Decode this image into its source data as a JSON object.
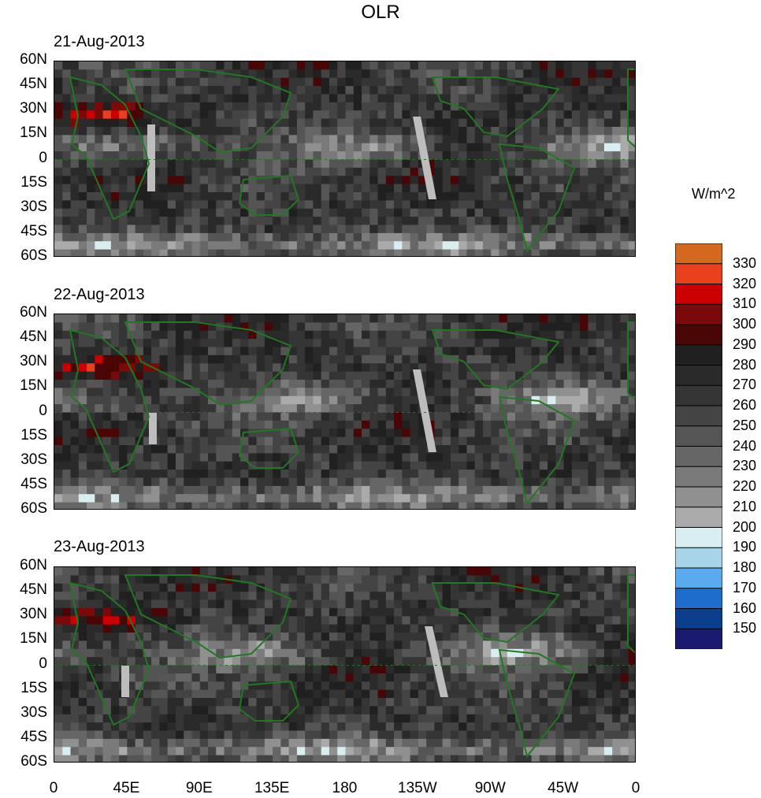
{
  "figure": {
    "title": "OLR",
    "panels": [
      {
        "date": "21-Aug-2013"
      },
      {
        "date": "22-Aug-2013"
      },
      {
        "date": "23-Aug-2013"
      }
    ],
    "lat_ticks": [
      "60N",
      "45N",
      "30N",
      "15N",
      "0",
      "15S",
      "30S",
      "45S",
      "60S"
    ],
    "lon_ticks": [
      "0",
      "45E",
      "90E",
      "135E",
      "180",
      "135W",
      "90W",
      "45W",
      "0"
    ],
    "colorbar": {
      "units": "W/m^2",
      "levels": [
        "330",
        "320",
        "310",
        "300",
        "290",
        "280",
        "270",
        "260",
        "250",
        "240",
        "230",
        "220",
        "210",
        "200",
        "190",
        "180",
        "170",
        "160",
        "150"
      ],
      "colors": [
        "#d2691e",
        "#e8401c",
        "#cc0000",
        "#7a0a0a",
        "#4a0505",
        "#202020",
        "#2a2a2a",
        "#353535",
        "#444444",
        "#555555",
        "#666666",
        "#7a7a7a",
        "#909090",
        "#aaaaaa",
        "#d8eef0",
        "#a8d4ea",
        "#5aaaee",
        "#1e6ccc",
        "#0c3e8e",
        "#1a1a70"
      ]
    },
    "coastline_color": "#1f7a1f",
    "missing_color": "#bdbdbd"
  }
}
